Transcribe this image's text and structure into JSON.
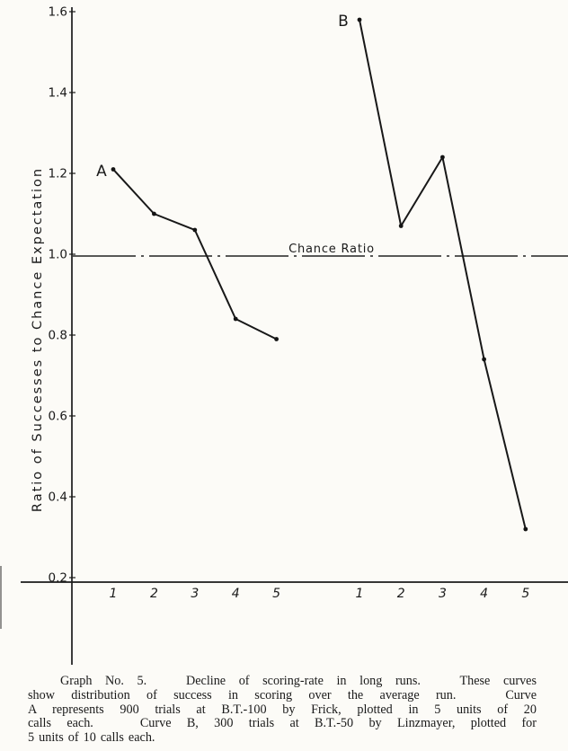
{
  "page": {
    "background": "#fcfbf7",
    "ink": "#1a1a1a"
  },
  "chart_data": {
    "type": "line",
    "title": "Graph No. 5",
    "ylabel": "Ratio of Successes to Chance Expectation",
    "xlabel": "",
    "ylim": [
      0.2,
      1.6
    ],
    "yticks": [
      1.6,
      1.4,
      1.2,
      1.0,
      0.8,
      0.6,
      0.4,
      0.2
    ],
    "ytick_labels": [
      "1.6",
      "1.4",
      "1.2",
      "1.0",
      "0.8",
      "0.6",
      "0.4",
      "0.2"
    ],
    "x_unit_labels": [
      "1",
      "2",
      "3",
      "4",
      "5"
    ],
    "chance_line": {
      "value": 1.0,
      "label": "Chance Ratio",
      "style": "dash-dot"
    },
    "grid": false,
    "legend_position": "labels-at-first-point",
    "series": [
      {
        "name": "A",
        "group": 0,
        "x": [
          1,
          2,
          3,
          4,
          5
        ],
        "values": [
          1.21,
          1.1,
          1.06,
          0.84,
          0.79
        ]
      },
      {
        "name": "B",
        "group": 1,
        "x": [
          1,
          2,
          3,
          4,
          5
        ],
        "values": [
          1.58,
          1.07,
          1.24,
          0.74,
          0.32
        ]
      }
    ]
  },
  "caption": {
    "lines": [
      "Graph No. 5.   Decline of scoring-rate in long runs.   These curves",
      "show distribution of success in scoring over the average run.   Curve",
      "A represents 900 trials at B.T.-100 by Frick, plotted in 5 units of 20",
      "calls each.   Curve B, 300 trials at B.T.-50 by Linzmayer, plotted for",
      "5 units of 10 calls each."
    ]
  }
}
